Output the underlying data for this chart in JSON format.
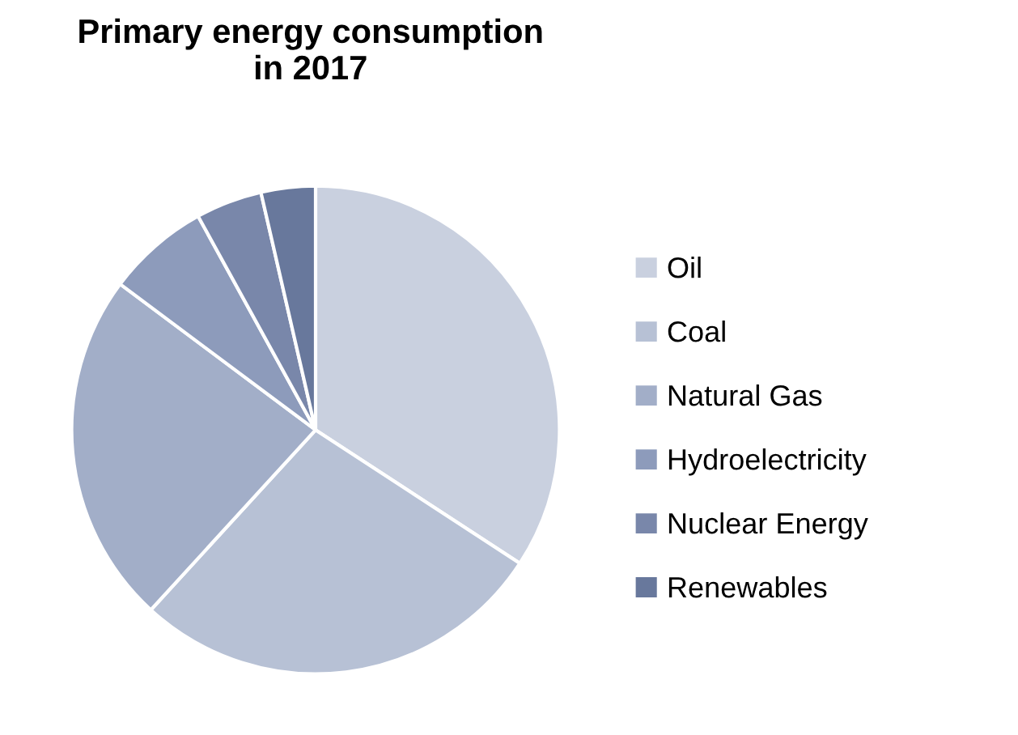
{
  "chart_data": {
    "type": "pie",
    "title": "Primary energy consumption\nin 2017",
    "categories": [
      "Oil",
      "Coal",
      "Natural Gas",
      "Hydroelectricity",
      "Nuclear Energy",
      "Renewables"
    ],
    "values": [
      34.2,
      27.6,
      23.4,
      6.8,
      4.4,
      3.6
    ],
    "colors": [
      "#c9d0df",
      "#b7c1d5",
      "#a2aec8",
      "#8d9bbb",
      "#7987aa",
      "#68789c"
    ],
    "legend": "right"
  }
}
